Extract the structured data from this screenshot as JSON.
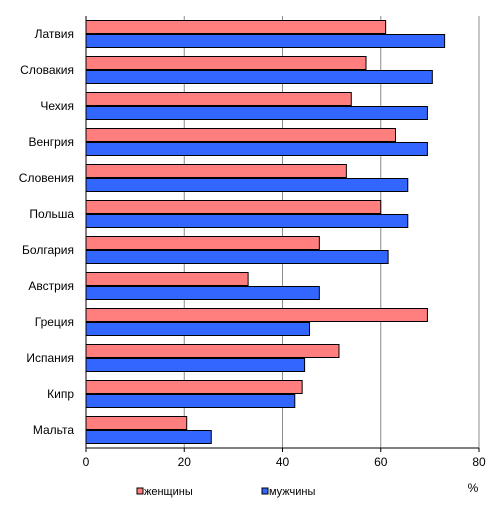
{
  "chart_data": {
    "type": "bar",
    "orientation": "horizontal",
    "categories": [
      "Латвия",
      "Словакия",
      "Чехия",
      "Венгрия",
      "Словения",
      "Польша",
      "Болгария",
      "Австрия",
      "Греция",
      "Испания",
      "Кипр",
      "Мальта"
    ],
    "series": [
      {
        "name": "женщины",
        "color": "#ff7f7f",
        "values": [
          61,
          57,
          54,
          63,
          53,
          60,
          47.5,
          33,
          69.5,
          51.5,
          44,
          20.5
        ]
      },
      {
        "name": "мужчины",
        "color": "#3366ff",
        "values": [
          73,
          70.5,
          69.5,
          69.5,
          65.5,
          65.5,
          61.5,
          47.5,
          45.5,
          44.5,
          42.5,
          25.5
        ]
      }
    ],
    "xlim": [
      0,
      80
    ],
    "xticks": [
      0,
      20,
      40,
      60,
      80
    ],
    "xlabel": "%",
    "grid": true,
    "legend": "bottom"
  }
}
